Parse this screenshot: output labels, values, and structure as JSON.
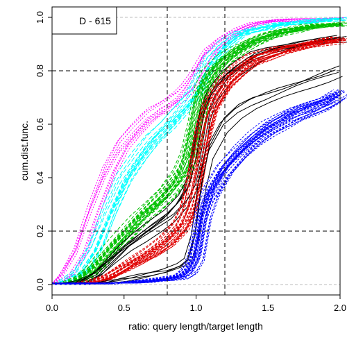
{
  "chart_data": {
    "type": "line",
    "title": "",
    "legend_label": "D - 615",
    "legend_position": "top-left",
    "xlabel": "ratio: query length/target length",
    "ylabel": "cum.dist.func.",
    "xlim": [
      0.0,
      2.0
    ],
    "ylim": [
      0.0,
      1.0
    ],
    "x_ticks": [
      "0.0",
      "0.5",
      "1.0",
      "1.5",
      "2.0"
    ],
    "y_ticks": [
      "0.0",
      "0.2",
      "0.4",
      "0.6",
      "0.8",
      "1.0"
    ],
    "reference_lines": {
      "vertical": [
        0.8,
        1.2
      ],
      "horizontal": [
        0.2,
        0.8
      ],
      "light_horizontal": [
        0.0,
        1.0
      ]
    },
    "x": [
      0.0,
      0.1,
      0.2,
      0.3,
      0.4,
      0.5,
      0.6,
      0.7,
      0.8,
      0.9,
      0.95,
      1.0,
      1.05,
      1.1,
      1.2,
      1.3,
      1.4,
      1.5,
      1.6,
      1.7,
      1.8,
      1.9,
      2.0
    ],
    "series": [
      {
        "color": "#ff00ff",
        "count": 10,
        "dash": "2,2",
        "values": [
          0.0,
          0.03,
          0.12,
          0.28,
          0.42,
          0.52,
          0.58,
          0.63,
          0.66,
          0.7,
          0.73,
          0.77,
          0.82,
          0.87,
          0.92,
          0.95,
          0.97,
          0.98,
          0.985,
          0.99,
          0.99,
          0.995,
          1.0
        ]
      },
      {
        "color": "#00ffff",
        "count": 15,
        "dash": "7,3",
        "values": [
          0.0,
          0.01,
          0.05,
          0.14,
          0.28,
          0.4,
          0.48,
          0.55,
          0.6,
          0.66,
          0.69,
          0.73,
          0.79,
          0.84,
          0.9,
          0.94,
          0.955,
          0.965,
          0.975,
          0.98,
          0.985,
          0.99,
          0.995
        ]
      },
      {
        "color": "#00c000",
        "count": 30,
        "dash": "5,3",
        "values": [
          0.0,
          0.0,
          0.02,
          0.06,
          0.12,
          0.18,
          0.24,
          0.29,
          0.34,
          0.41,
          0.47,
          0.58,
          0.72,
          0.78,
          0.84,
          0.88,
          0.91,
          0.93,
          0.945,
          0.955,
          0.965,
          0.97,
          0.975
        ]
      },
      {
        "color": "#000000",
        "count": 8,
        "dash": "",
        "values": [
          0.0,
          0.0,
          0.01,
          0.04,
          0.09,
          0.14,
          0.18,
          0.22,
          0.26,
          0.32,
          0.37,
          0.48,
          0.64,
          0.71,
          0.78,
          0.82,
          0.855,
          0.875,
          0.89,
          0.9,
          0.91,
          0.915,
          0.92
        ]
      },
      {
        "color": "#e00000",
        "count": 25,
        "dash": "4,2",
        "values": [
          0.0,
          0.0,
          0.0,
          0.01,
          0.03,
          0.06,
          0.09,
          0.12,
          0.16,
          0.22,
          0.28,
          0.4,
          0.56,
          0.66,
          0.75,
          0.8,
          0.84,
          0.86,
          0.88,
          0.89,
          0.9,
          0.91,
          0.915
        ]
      },
      {
        "color": "#000000",
        "count": 4,
        "dash": "",
        "values": [
          0.0,
          0.0,
          0.0,
          0.0,
          0.01,
          0.02,
          0.03,
          0.04,
          0.05,
          0.07,
          0.09,
          0.18,
          0.38,
          0.5,
          0.6,
          0.65,
          0.68,
          0.7,
          0.72,
          0.74,
          0.76,
          0.78,
          0.8
        ]
      },
      {
        "color": "#0000ff",
        "count": 30,
        "dash": "3,2",
        "values": [
          0.0,
          0.0,
          0.0,
          0.0,
          0.0,
          0.005,
          0.01,
          0.015,
          0.02,
          0.03,
          0.05,
          0.1,
          0.26,
          0.34,
          0.43,
          0.49,
          0.54,
          0.58,
          0.61,
          0.64,
          0.66,
          0.68,
          0.71
        ]
      }
    ]
  }
}
